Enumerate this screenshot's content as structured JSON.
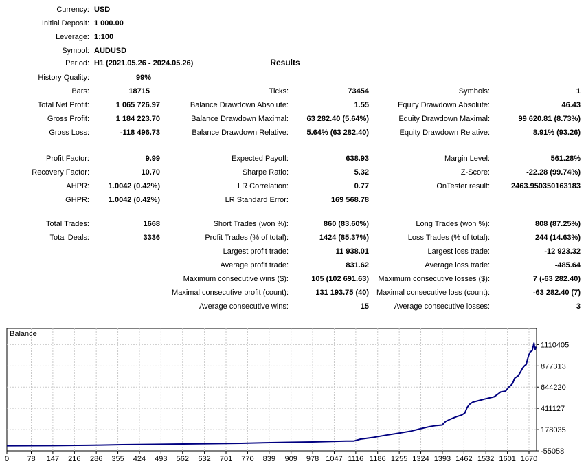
{
  "results_title": "Results",
  "setup": {
    "rows": [
      {
        "label": "Currency:",
        "value": "USD"
      },
      {
        "label": "Initial Deposit:",
        "value": "1 000.00"
      },
      {
        "label": "Leverage:",
        "value": "1:100"
      },
      {
        "label": "Symbol:",
        "value": "AUDUSD"
      },
      {
        "label": "Period:",
        "value": "H1 (2021.05.26 - 2024.05.26)"
      },
      {
        "label": "History Quality:",
        "value": "99%"
      }
    ]
  },
  "stats_sections": [
    {
      "rows": [
        {
          "c1l": "Bars:",
          "c1v": "18715",
          "c2l": "Ticks:",
          "c2v": "73454",
          "c3l": "Symbols:",
          "c3v": "1"
        },
        {
          "c1l": "Total Net Profit:",
          "c1v": "1 065 726.97",
          "c2l": "Balance Drawdown Absolute:",
          "c2v": "1.55",
          "c3l": "Equity Drawdown Absolute:",
          "c3v": "46.43"
        },
        {
          "c1l": "Gross Profit:",
          "c1v": "1 184 223.70",
          "c2l": "Balance Drawdown Maximal:",
          "c2v": "63 282.40 (5.64%)",
          "c3l": "Equity Drawdown Maximal:",
          "c3v": "99 620.81 (8.73%)"
        },
        {
          "c1l": "Gross Loss:",
          "c1v": "-118 496.73",
          "c2l": "Balance Drawdown Relative:",
          "c2v": "5.64% (63 282.40)",
          "c3l": "Equity Drawdown Relative:",
          "c3v": "8.91% (93.26)"
        }
      ]
    },
    {
      "rows": [
        {
          "c1l": "Profit Factor:",
          "c1v": "9.99",
          "c2l": "Expected Payoff:",
          "c2v": "638.93",
          "c3l": "Margin Level:",
          "c3v": "561.28%"
        },
        {
          "c1l": "Recovery Factor:",
          "c1v": "10.70",
          "c2l": "Sharpe Ratio:",
          "c2v": "5.32",
          "c3l": "Z-Score:",
          "c3v": "-22.28 (99.74%)"
        },
        {
          "c1l": "AHPR:",
          "c1v": "1.0042 (0.42%)",
          "c2l": "LR Correlation:",
          "c2v": "0.77",
          "c3l": "OnTester result:",
          "c3v": "2463.950350163183"
        },
        {
          "c1l": "GHPR:",
          "c1v": "1.0042 (0.42%)",
          "c2l": "LR Standard Error:",
          "c2v": "169 568.78",
          "c3l": "",
          "c3v": ""
        }
      ]
    },
    {
      "rows": [
        {
          "c1l": "Total Trades:",
          "c1v": "1668",
          "c2l": "Short Trades (won %):",
          "c2v": "860 (83.60%)",
          "c3l": "Long Trades (won %):",
          "c3v": "808 (87.25%)"
        },
        {
          "c1l": "Total Deals:",
          "c1v": "3336",
          "c2l": "Profit Trades (% of total):",
          "c2v": "1424 (85.37%)",
          "c3l": "Loss Trades (% of total):",
          "c3v": "244 (14.63%)"
        },
        {
          "c1l": "",
          "c1v": "",
          "c2l": "Largest profit trade:",
          "c2v": "11 938.01",
          "c3l": "Largest loss trade:",
          "c3v": "-12 923.32"
        },
        {
          "c1l": "",
          "c1v": "",
          "c2l": "Average profit trade:",
          "c2v": "831.62",
          "c3l": "Average loss trade:",
          "c3v": "-485.64"
        },
        {
          "c1l": "",
          "c1v": "",
          "c2l": "Maximum consecutive wins ($):",
          "c2v": "105 (102 691.63)",
          "c3l": "Maximum consecutive losses ($):",
          "c3v": "7 (-63 282.40)"
        },
        {
          "c1l": "",
          "c1v": "",
          "c2l": "Maximal consecutive profit (count):",
          "c2v": "131 193.75 (40)",
          "c3l": "Maximal consecutive loss (count):",
          "c3v": "-63 282.40 (7)"
        },
        {
          "c1l": "",
          "c1v": "",
          "c2l": "Average consecutive wins:",
          "c2v": "15",
          "c3l": "Average consecutive losses:",
          "c3v": "3"
        }
      ]
    }
  ],
  "chart_data": {
    "type": "line",
    "title": "Balance",
    "xlabel": "",
    "ylabel": "",
    "x_range": [
      0,
      1670
    ],
    "y_range": [
      -55058,
      1110405
    ],
    "x_ticks": [
      0,
      78,
      147,
      216,
      286,
      355,
      424,
      493,
      562,
      632,
      701,
      770,
      839,
      909,
      978,
      1047,
      1116,
      1186,
      1255,
      1324,
      1393,
      1462,
      1532,
      1601,
      1670
    ],
    "y_ticks": [
      -55058,
      178035,
      411127,
      644220,
      877313,
      1110405
    ],
    "grid": true,
    "legend_position": "none",
    "line_color": "#000080",
    "grid_color": "#c9c9c9",
    "series": [
      {
        "name": "Balance",
        "points": [
          [
            0,
            1000
          ],
          [
            150,
            2500
          ],
          [
            227,
            5000
          ],
          [
            300,
            8500
          ],
          [
            368,
            12500
          ],
          [
            470,
            16500
          ],
          [
            566,
            20000
          ],
          [
            661,
            24000
          ],
          [
            749,
            27500
          ],
          [
            830,
            35000
          ],
          [
            904,
            39000
          ],
          [
            977,
            43000
          ],
          [
            1051,
            50000
          ],
          [
            1085,
            52500
          ],
          [
            1110,
            53000
          ],
          [
            1131,
            73000
          ],
          [
            1168,
            90000
          ],
          [
            1212,
            116000
          ],
          [
            1256,
            140000
          ],
          [
            1293,
            161000
          ],
          [
            1322,
            186000
          ],
          [
            1352,
            210000
          ],
          [
            1374,
            222000
          ],
          [
            1392,
            228000
          ],
          [
            1403,
            266000
          ],
          [
            1418,
            291000
          ],
          [
            1440,
            321000
          ],
          [
            1455,
            338000
          ],
          [
            1465,
            360000
          ],
          [
            1472,
            420000
          ],
          [
            1480,
            455000
          ],
          [
            1490,
            479000
          ],
          [
            1505,
            492000
          ],
          [
            1532,
            516000
          ],
          [
            1558,
            537000
          ],
          [
            1570,
            565000
          ],
          [
            1580,
            592000
          ],
          [
            1595,
            600000
          ],
          [
            1605,
            642000
          ],
          [
            1613,
            667000
          ],
          [
            1618,
            687000
          ],
          [
            1624,
            742000
          ],
          [
            1635,
            767000
          ],
          [
            1642,
            805000
          ],
          [
            1650,
            855000
          ],
          [
            1656,
            880000
          ],
          [
            1661,
            892000
          ],
          [
            1665,
            943000
          ],
          [
            1669,
            992000
          ],
          [
            1674,
            1030000
          ],
          [
            1680,
            1043000
          ],
          [
            1683,
            1085000
          ],
          [
            1685,
            1110000
          ],
          [
            1686,
            1128000
          ],
          [
            1688,
            1075000
          ],
          [
            1690,
            1058000
          ],
          [
            1691,
            1082000
          ],
          [
            1693,
            1066727
          ]
        ]
      }
    ]
  }
}
